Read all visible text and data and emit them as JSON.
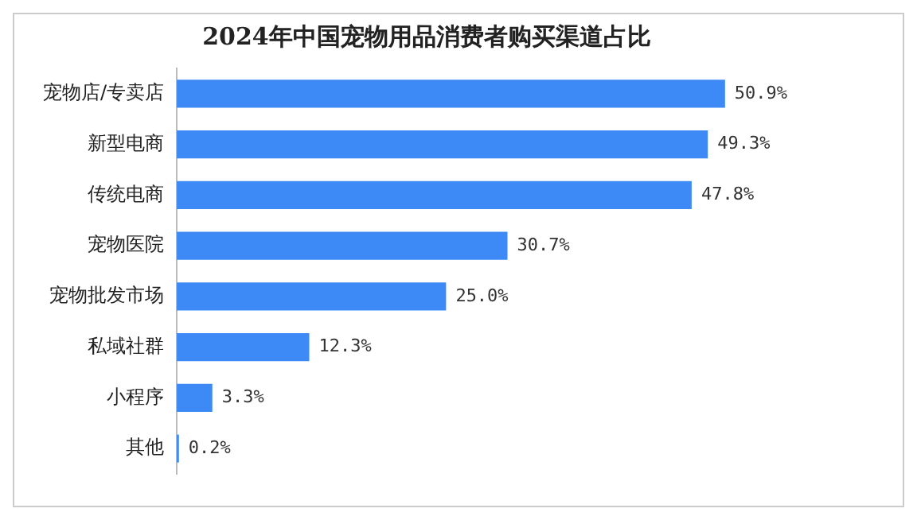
{
  "chart_data": {
    "type": "bar",
    "orientation": "horizontal",
    "title": "2024年中国宠物用品消费者购买渠道占比",
    "categories": [
      "宠物店/专卖店",
      "新型电商",
      "传统电商",
      "宠物医院",
      "宠物批发市场",
      "私域社群",
      "小程序",
      "其他"
    ],
    "values": [
      50.9,
      49.3,
      47.8,
      30.7,
      25.0,
      12.3,
      3.3,
      0.2
    ],
    "value_labels": [
      "50.9%",
      "49.3%",
      "47.8%",
      "30.7%",
      "25.0%",
      "12.3%",
      "3.3%",
      "0.2%"
    ],
    "color": "#3d8af7",
    "grid": false,
    "legend": false,
    "tick_labels": "y"
  }
}
